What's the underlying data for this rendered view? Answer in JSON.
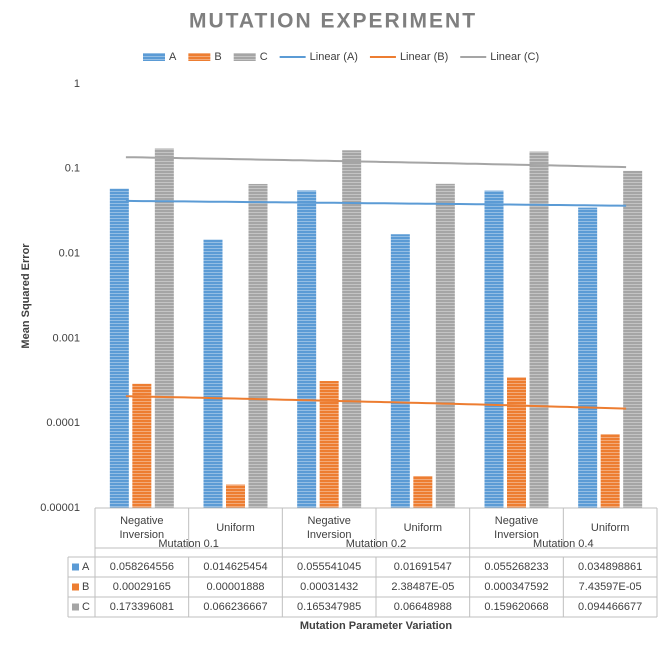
{
  "chart_data": {
    "type": "bar",
    "title": "MUTATION EXPERIMENT",
    "y_label": "Mean Squared Error",
    "x_label": "Mutation Parameter Variation",
    "log_scale": true,
    "grid": false,
    "legend": "top",
    "categories": [
      "Negative Inversion",
      "Uniform",
      "Negative Inversion",
      "Uniform",
      "Negative Inversion",
      "Uniform"
    ],
    "groups": [
      "Mutation 0.1",
      "Mutation 0.2",
      "Mutation 0.4"
    ],
    "series": [
      {
        "name": "A",
        "color": "#5b9bd5",
        "values": [
          0.058264556,
          0.014625454,
          0.055541045,
          0.01691547,
          0.055268233,
          0.034898861
        ]
      },
      {
        "name": "B",
        "color": "#ed7d31",
        "values": [
          0.00029165,
          1.888e-05,
          0.00031432,
          2.38487e-05,
          0.000347592,
          7.43597e-05
        ],
        "value_labels": [
          "0.00029165",
          "0.00001888",
          "0.00031432",
          "2.38487E-05",
          "0.000347592",
          "7.43597E-05"
        ]
      },
      {
        "name": "C",
        "color": "#a5a5a5",
        "values": [
          0.173396081,
          0.066236667,
          0.165347985,
          0.06648988,
          0.159620668,
          0.094466677
        ]
      }
    ],
    "trendlines": [
      {
        "name": "Linear (A)",
        "color": "#5b9bd5"
      },
      {
        "name": "Linear (B)",
        "color": "#ed7d31"
      },
      {
        "name": "Linear (C)",
        "color": "#a5a5a5"
      }
    ],
    "ylim": [
      1e-05,
      1
    ],
    "yticks": [
      1e-05,
      0.0001,
      0.001,
      0.01,
      0.1,
      1
    ]
  }
}
